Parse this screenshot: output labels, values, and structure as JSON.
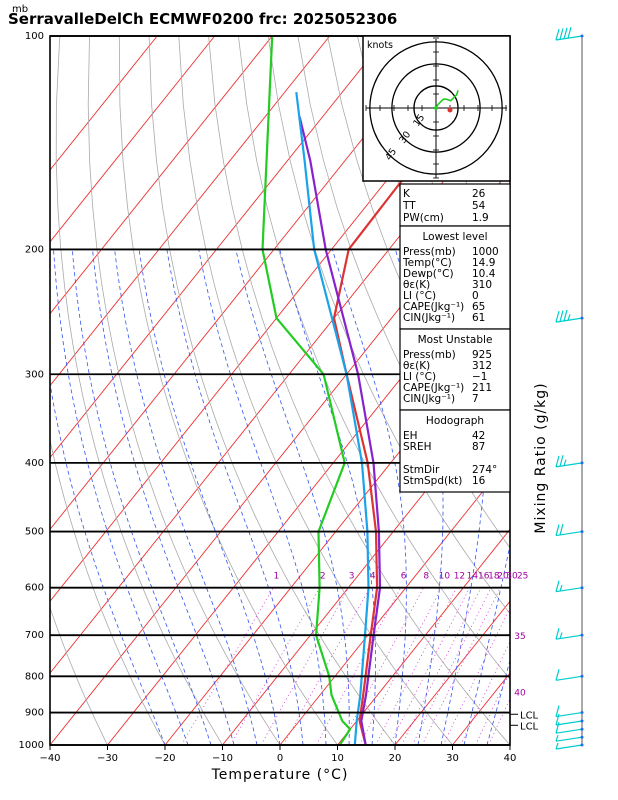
{
  "title": "SerravalleDelCh  ECMWF0200  frc: 2025052306",
  "units": {
    "pressure": "mb",
    "xlabel": "Temperature  (°C)",
    "right_label": "Mixing  Ratio  (g/kg)",
    "hodo_units": "knots"
  },
  "colors": {
    "temperature": "#dd3333",
    "dewpoint": "#22cc22",
    "parcel": "#8822cc",
    "virtual": "#1aa3e8",
    "isotherm": "#ee3333",
    "dry_adiabat": "#aaaaaa",
    "moist_adiabat": "#3355ee",
    "mixing_ratio": "#cc33cc",
    "wind": "#00cccc"
  },
  "chart_data": {
    "type": "skewt",
    "xlim": [
      -40,
      40
    ],
    "ylim": [
      1000,
      100
    ],
    "pressure_ticks": [
      "100",
      "200",
      "300",
      "400",
      "500",
      "600",
      "700",
      "800",
      "900",
      "1000"
    ],
    "temperature_ticks": [
      "−40",
      "−30",
      "−20",
      "−10",
      "0",
      "10",
      "20",
      "30",
      "40"
    ],
    "mixing_ratio_labels": [
      "1",
      "2",
      "3",
      "4",
      "6",
      "8",
      "10",
      "12",
      "14",
      "16",
      "18",
      "20",
      "25",
      "30",
      "35",
      "40"
    ],
    "lcl_labels": [
      "LCL",
      "LCL"
    ],
    "series": [
      {
        "key": "temperature",
        "p": [
          1000,
          925,
          850,
          700,
          600,
          500,
          400,
          300,
          250,
          200,
          100
        ],
        "t": [
          14.9,
          10.5,
          7.5,
          0.5,
          -5.0,
          -13.0,
          -24.0,
          -40.0,
          -50.0,
          -57.0,
          -58.0
        ]
      },
      {
        "key": "dewpoint",
        "p": [
          1000,
          950,
          925,
          850,
          800,
          700,
          600,
          500,
          400,
          300,
          250,
          200,
          100
        ],
        "t": [
          10.4,
          10.0,
          7.5,
          2.0,
          -1.0,
          -9.0,
          -15.0,
          -23.0,
          -28.0,
          -44.0,
          -60.0,
          -72.0,
          -100.0
        ]
      },
      {
        "key": "parcel",
        "p": [
          1000,
          925,
          850,
          700,
          600,
          500,
          400,
          300,
          200,
          150,
          130
        ],
        "t": [
          14.9,
          10.8,
          8.0,
          1.0,
          -4.5,
          -12.5,
          -23.0,
          -38.0,
          -61.0,
          -76.0,
          -84.0
        ]
      },
      {
        "key": "virtual",
        "p": [
          1000,
          925,
          850,
          700,
          600,
          500,
          400,
          300,
          200,
          150,
          120
        ],
        "t": [
          13.0,
          10.0,
          7.0,
          -0.5,
          -6.5,
          -14.5,
          -25.0,
          -40.0,
          -63.0,
          -77.0,
          -88.0
        ]
      }
    ],
    "hodograph": {
      "rings": [
        "15",
        "30",
        "45"
      ],
      "u": [
        0,
        1,
        3,
        5,
        7,
        10,
        14,
        15
      ],
      "v": [
        0,
        2,
        4,
        6,
        6,
        5,
        9,
        12
      ]
    },
    "wind_barbs": {
      "p": [
        100,
        250,
        400,
        500,
        600,
        700,
        800,
        900,
        925,
        950,
        975,
        1000
      ],
      "flags": [
        "40",
        "35",
        "25",
        "20",
        "15",
        "15",
        "10",
        "10",
        "10",
        "10",
        "5",
        "5"
      ]
    }
  },
  "indices": {
    "top": [
      {
        "label": "K",
        "value": "26"
      },
      {
        "label": "TT",
        "value": "54"
      },
      {
        "label": "PW(cm)",
        "value": "1.9"
      }
    ],
    "lowest_level": {
      "heading": "Lowest  level",
      "rows": [
        {
          "label": "Press(mb)",
          "value": "1000"
        },
        {
          "label": "Temp(°C)",
          "value": "14.9"
        },
        {
          "label": "Dewp(°C)",
          "value": "10.4"
        },
        {
          "label": "θε(K)",
          "value": "310"
        },
        {
          "label": "LI  (°C)",
          "value": "0"
        },
        {
          "label": "CAPE(Jkg⁻¹)",
          "value": "65"
        },
        {
          "label": "CIN(Jkg⁻¹)",
          "value": "61"
        }
      ]
    },
    "most_unstable": {
      "heading": "Most  Unstable",
      "rows": [
        {
          "label": "Press(mb)",
          "value": "925"
        },
        {
          "label": "θε(K)",
          "value": "312"
        },
        {
          "label": "LI  (°C)",
          "value": "−1"
        },
        {
          "label": "CAPE(Jkg⁻¹)",
          "value": "211"
        },
        {
          "label": "CIN(Jkg⁻¹)",
          "value": "7"
        }
      ]
    },
    "hodograph": {
      "heading": "Hodograph",
      "rows": [
        {
          "label": "EH",
          "value": "42"
        },
        {
          "label": "SREH",
          "value": "87"
        },
        {
          "label": "StmDir",
          "value": "274°"
        },
        {
          "label": "StmSpd(kt)",
          "value": "16"
        }
      ]
    }
  }
}
